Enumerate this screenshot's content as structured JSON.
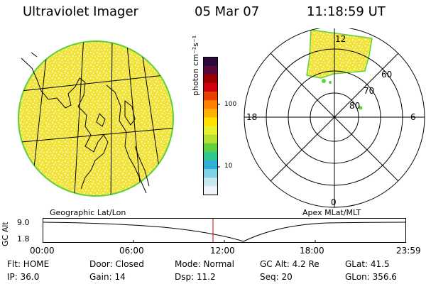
{
  "header": {
    "title": "Ultraviolet Imager",
    "date": "05 Mar 07",
    "time": "11:18:59 UT"
  },
  "colorbar": {
    "unit_label": "photon cm⁻²s⁻¹",
    "tick_labels": [
      "100",
      "10"
    ],
    "colors": [
      "#2a0a3a",
      "#5a0a3a",
      "#9a0000",
      "#d00010",
      "#e84000",
      "#ff8000",
      "#ffb000",
      "#ffe000",
      "#e8f030",
      "#b8e030",
      "#60d040",
      "#30c890",
      "#30b0d8",
      "#80d0e8",
      "#c8e8f0",
      "#f0f4f8"
    ]
  },
  "geo_panel": {
    "label": "Geographic Lat/Lon",
    "fill_color": "#f2e33a",
    "speckle_color": "#ffffff",
    "edge_color": "#5ad23a"
  },
  "polar_panel": {
    "label": "Apex MLat/MLT",
    "mlt_labels": {
      "top": "12",
      "left": "18",
      "right": "6",
      "bottom": "0"
    },
    "lat_labels": [
      "60",
      "70",
      "80"
    ]
  },
  "gc_plot": {
    "axis_label": "GC Alt",
    "y_top": "9.0",
    "y_bottom": "1.8",
    "x_ticks": [
      "00:00",
      "06:00",
      "12:00",
      "18:00",
      "23:59"
    ],
    "marker_color": "#d00000"
  },
  "info": {
    "row1": [
      "Flt: HOME",
      "Door: Closed",
      "Mode: Normal",
      "GC Alt: 4.2 Re",
      "GLat:  41.5"
    ],
    "row2": [
      "IP: 36.0",
      "Gain: 14",
      "Dsp:    11.2",
      "Seq: 20",
      "GLon: 356.6"
    ]
  }
}
